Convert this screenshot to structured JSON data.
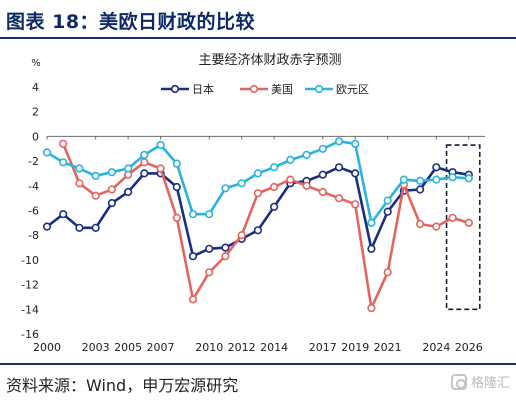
{
  "figure_title": "图表 18：美欧日财政的比较",
  "source": "资料来源：Wind，申万宏源研究",
  "watermark": "格隆汇",
  "chart_data": {
    "type": "line",
    "title": "主要经济体财政赤字预测",
    "ylabel": "%",
    "xlabel": "",
    "ylim": [
      -16,
      4
    ],
    "yticks": [
      4,
      2,
      0,
      -2,
      -4,
      -6,
      -8,
      -10,
      -12,
      -14,
      -16
    ],
    "xlim": [
      2000,
      2027
    ],
    "xticks": [
      2000,
      2003,
      2005,
      2007,
      2010,
      2012,
      2014,
      2017,
      2019,
      2021,
      2024,
      2026
    ],
    "x": [
      2000,
      2001,
      2002,
      2003,
      2004,
      2005,
      2006,
      2007,
      2008,
      2009,
      2010,
      2011,
      2012,
      2013,
      2014,
      2015,
      2016,
      2017,
      2018,
      2019,
      2020,
      2021,
      2022,
      2023,
      2024,
      2025,
      2026
    ],
    "grid": false,
    "legend_position": "top",
    "forecast_highlight": [
      2025,
      2026
    ],
    "series": [
      {
        "name": "日本",
        "color": "#1a2f7f",
        "values": [
          -7.3,
          -6.3,
          -7.4,
          -7.4,
          -5.4,
          -4.5,
          -3.0,
          -3.0,
          -4.1,
          -9.7,
          -9.1,
          -9.0,
          -8.3,
          -7.6,
          -5.7,
          -3.8,
          -3.6,
          -3.1,
          -2.5,
          -3.0,
          -9.1,
          -6.1,
          -4.4,
          -4.3,
          -2.5,
          -2.9,
          -3.1
        ]
      },
      {
        "name": "美国",
        "color": "#e2655f",
        "values": [
          null,
          -0.6,
          -3.8,
          -4.8,
          -4.3,
          -3.1,
          -2.1,
          -2.6,
          -6.6,
          -13.2,
          -11.0,
          -9.7,
          -8.0,
          -4.6,
          -4.1,
          -3.5,
          -4.0,
          -4.5,
          -5.0,
          -5.5,
          -13.9,
          -11.0,
          -3.9,
          -7.1,
          -7.3,
          -6.6,
          -7.0
        ]
      },
      {
        "name": "欧元区",
        "color": "#2ab4dc",
        "values": [
          -1.3,
          -2.1,
          -2.6,
          -3.2,
          -2.9,
          -2.6,
          -1.5,
          -0.7,
          -2.2,
          -6.3,
          -6.3,
          -4.2,
          -3.8,
          -3.0,
          -2.5,
          -1.9,
          -1.5,
          -1.0,
          -0.4,
          -0.6,
          -7.0,
          -5.2,
          -3.5,
          -3.6,
          -3.5,
          -3.3,
          -3.4
        ]
      }
    ]
  }
}
